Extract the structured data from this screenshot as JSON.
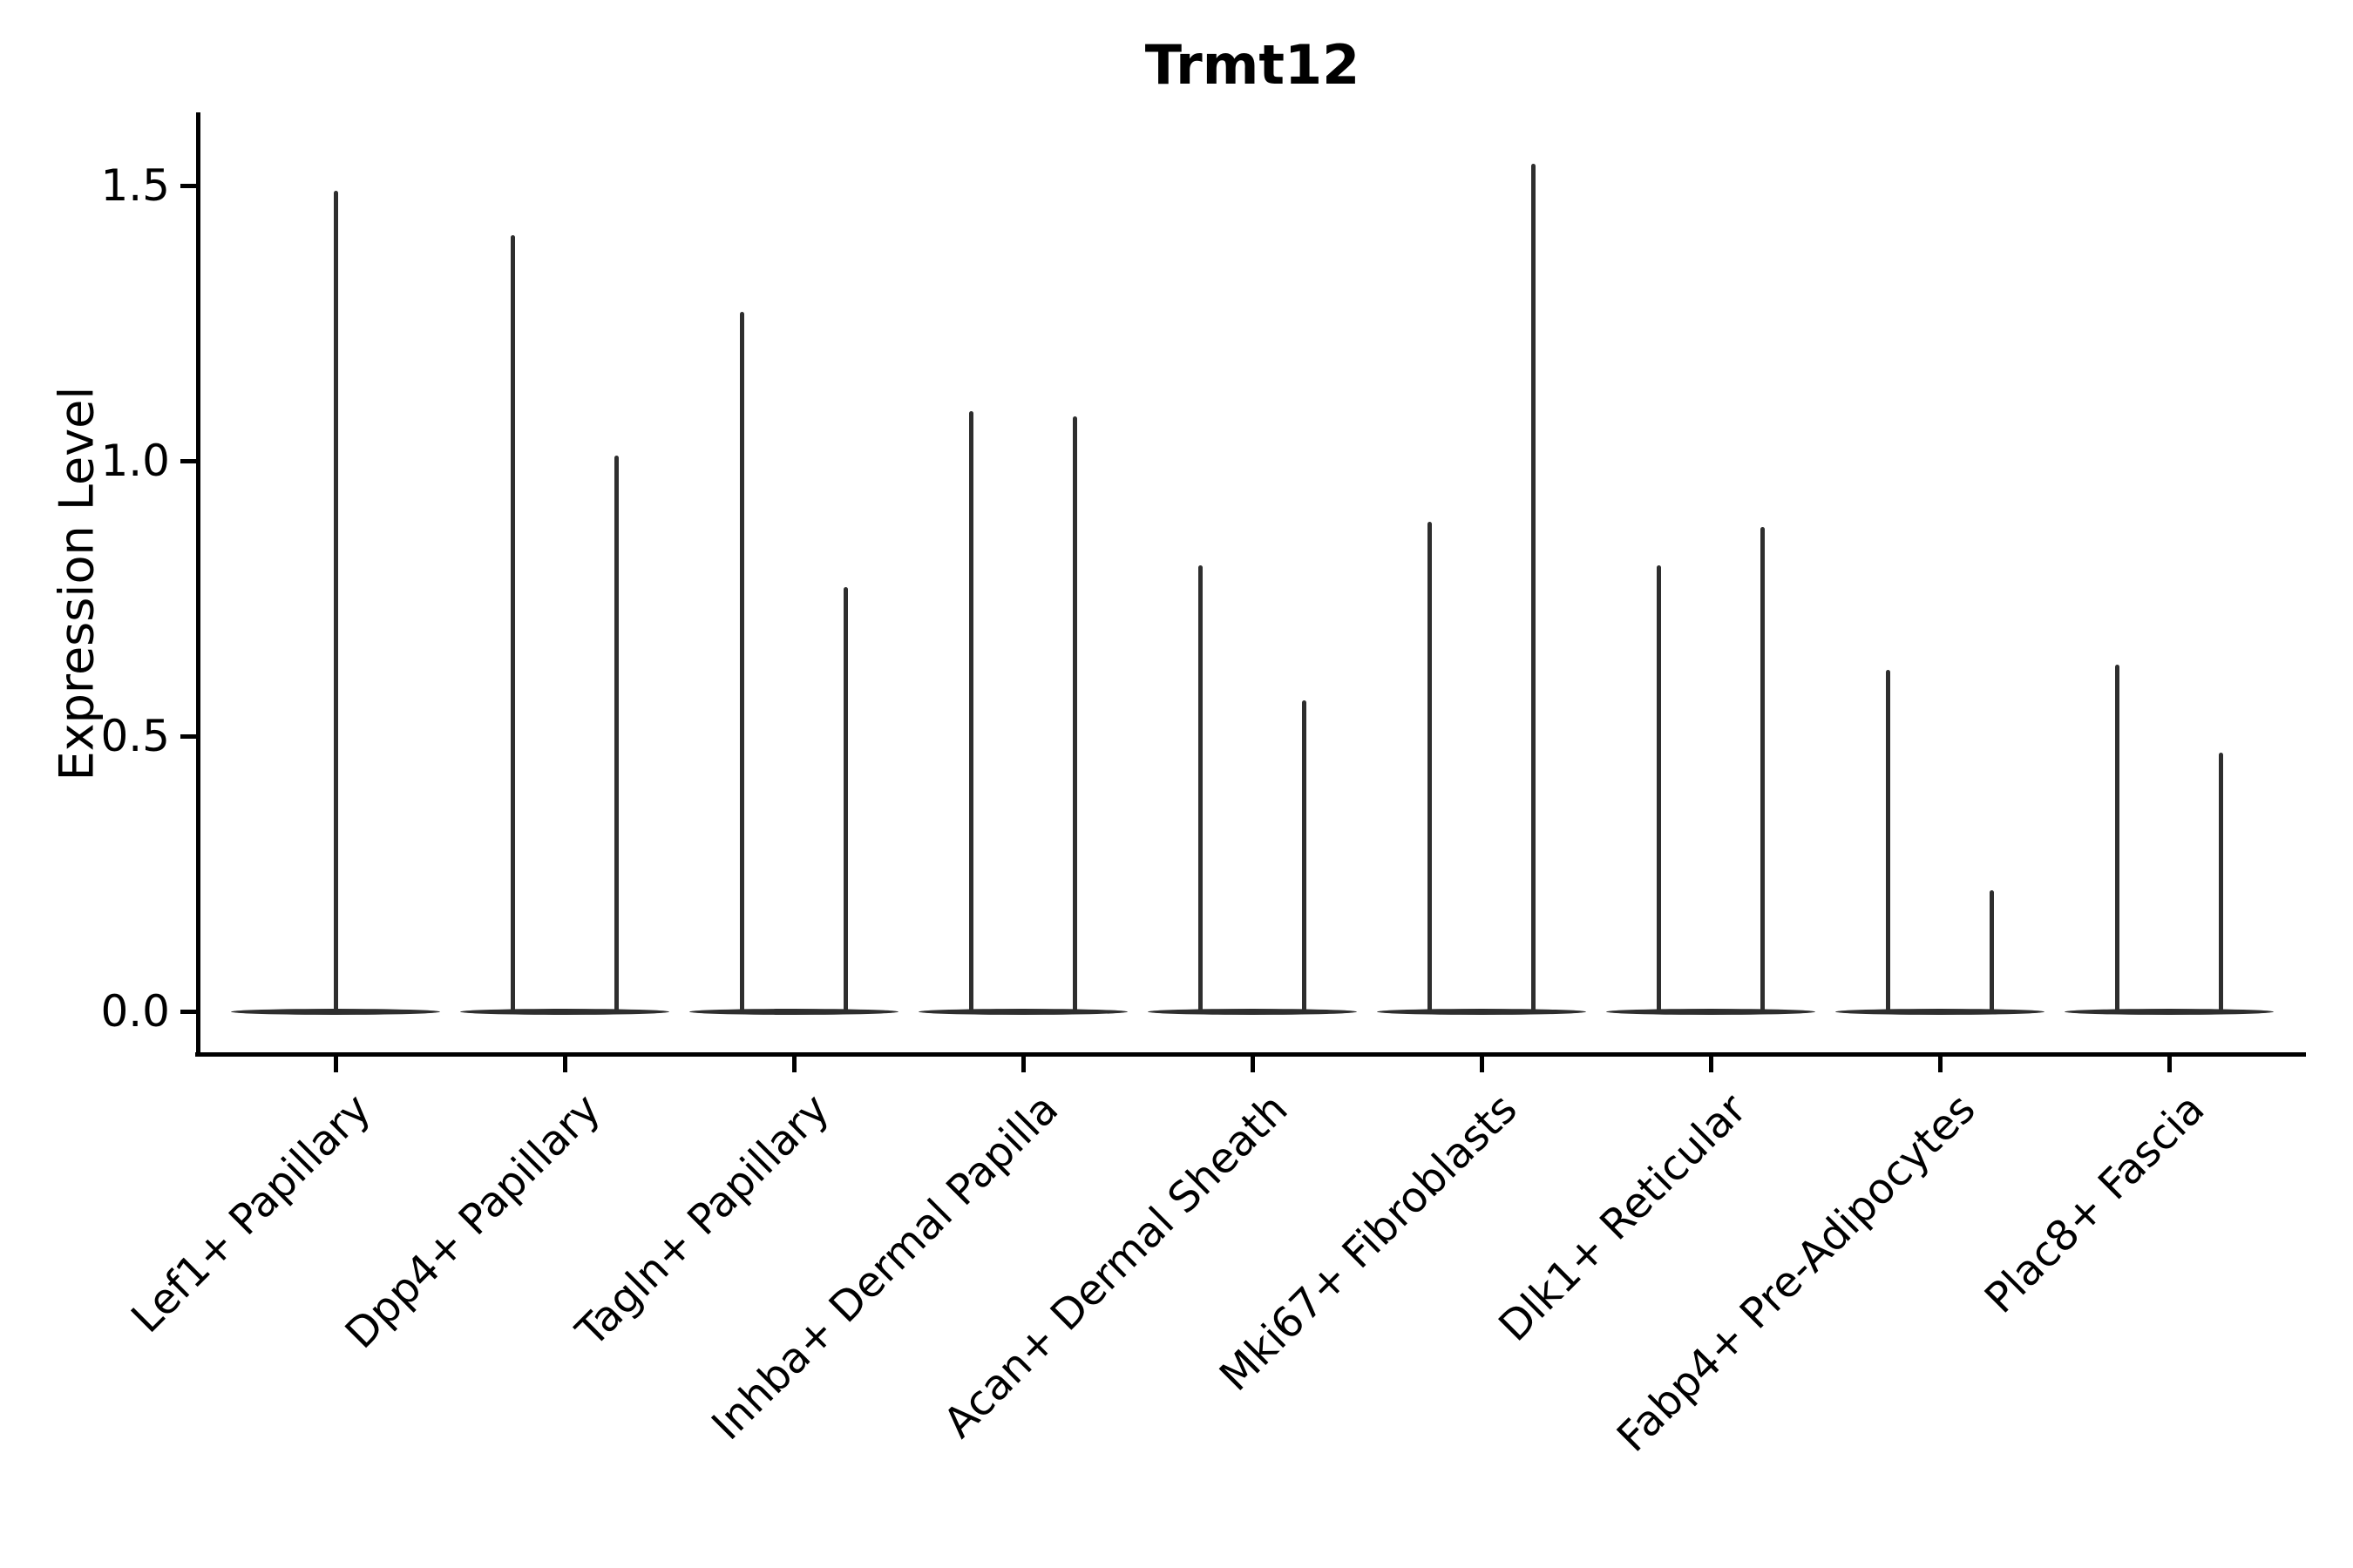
{
  "chart_data": {
    "type": "violin",
    "title": "Trmt12",
    "ylabel": "Expression Level",
    "xlabel": "",
    "ytick_labels": [
      "0.0",
      "0.5",
      "1.0",
      "1.5"
    ],
    "ytick_values": [
      0,
      0.5,
      1.0,
      1.5
    ],
    "ylim": [
      -0.07,
      1.63
    ],
    "grid": false,
    "legend": false,
    "line_color": "#2e2e2e",
    "axis_color": "#000000",
    "categories": [
      "Lef1+ Papillary",
      "Dpp4+ Papillary",
      "Tagln+ Papillary",
      "Inhba+ Dermal Papilla",
      "Acan+ Dermal Sheath",
      "Mki67+ Fibroblasts",
      "Dlk1+ Reticular",
      "Fabp4+ Pre-Adipocytes",
      "Plac8+ Fascia"
    ],
    "violins": [
      {
        "category": "Lef1+ Papillary",
        "spike_max_values": [
          1.49
        ]
      },
      {
        "category": "Dpp4+ Papillary",
        "spike_max_values": [
          1.41,
          1.01
        ]
      },
      {
        "category": "Tagln+ Papillary",
        "spike_max_values": [
          1.27,
          0.77
        ]
      },
      {
        "category": "Inhba+ Dermal Papilla",
        "spike_max_values": [
          1.09,
          1.08
        ]
      },
      {
        "category": "Acan+ Dermal Sheath",
        "spike_max_values": [
          0.81,
          0.565
        ]
      },
      {
        "category": "Mki67+ Fibroblasts",
        "spike_max_values": [
          0.89,
          1.54
        ]
      },
      {
        "category": "Dlk1+ Reticular",
        "spike_max_values": [
          0.81,
          0.88
        ]
      },
      {
        "category": "Fabp4+ Pre-Adipocytes",
        "spike_max_values": [
          0.62,
          0.22
        ]
      },
      {
        "category": "Plac8+ Fascia",
        "spike_max_values": [
          0.63,
          0.47
        ]
      }
    ]
  }
}
